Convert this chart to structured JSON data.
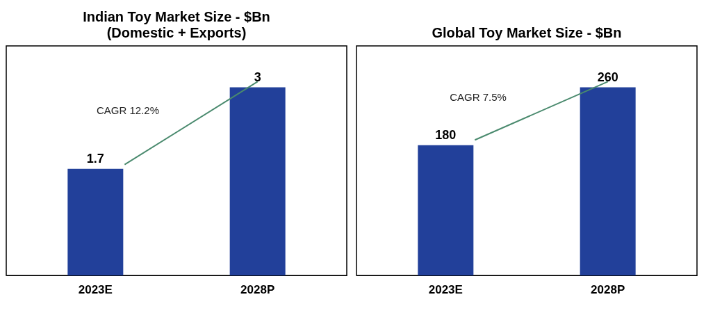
{
  "chart_data": [
    {
      "type": "bar",
      "title": "Indian Toy Market Size - $Bn",
      "subtitle": "(Domestic + Exports)",
      "categories": [
        "2023E",
        "2028P"
      ],
      "values": [
        1.7,
        3
      ],
      "color": "#22409a",
      "data_labels": true,
      "annotations": [
        "CAGR 12.2%"
      ]
    },
    {
      "type": "bar",
      "title": "Global Toy Market Size - $Bn",
      "categories": [
        "2023E",
        "2028P"
      ],
      "values": [
        180,
        260
      ],
      "color": "#22409a",
      "data_labels": true,
      "annotations": [
        "CAGR 7.5%"
      ]
    }
  ]
}
